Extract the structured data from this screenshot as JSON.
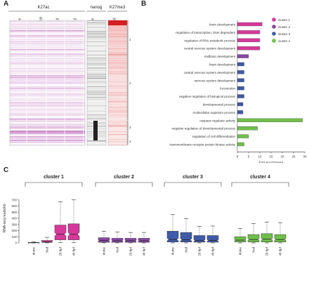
{
  "panels": {
    "a": "A",
    "b": "B",
    "c": "C"
  },
  "panel_a": {
    "group_k27ac": "K27ac",
    "group_nanog": "nanog",
    "group_k27me3": "K27me3",
    "col_labels": [
      "dome",
      "80%epi",
      "24hpf",
      "48hpf",
      "dome",
      "shield"
    ],
    "cluster_labels": [
      "1",
      "2",
      "3",
      "4"
    ]
  },
  "chart_data": [
    {
      "type": "bar",
      "orientation": "horizontal",
      "categories": [
        "brain development",
        "regulation of transcription, DNA dependent",
        "regulation of RNA metabolic process",
        "central nervous system development",
        "midbrain development",
        "brain development",
        "central nervous system development",
        "nervous system development",
        "locomotion",
        "negative regulation of biological process",
        "developmental process",
        "multicellular organism process",
        "caspase regulator activity",
        "negative regulation of developmental process",
        "regulation of cell differentiation",
        "transmembrane receptor protein kinase activity"
      ],
      "values": [
        11,
        10,
        10,
        10,
        5,
        3,
        3,
        3,
        3,
        3,
        2.5,
        2.5,
        29,
        9,
        5,
        3
      ],
      "cluster_of_bar": [
        1,
        1,
        1,
        1,
        2,
        3,
        3,
        3,
        3,
        3,
        3,
        3,
        4,
        4,
        4,
        4
      ],
      "legend": [
        "cluster 1",
        "cluster 2",
        "cluster 3",
        "cluster 4"
      ],
      "colors": {
        "cluster 1": "#d6389a",
        "cluster 2": "#8b46a6",
        "cluster 3": "#3f5aa8",
        "cluster 4": "#6fbf4a"
      },
      "xlabel": "fold enrichment",
      "xlim": [
        0,
        30
      ],
      "xticks": [
        0,
        5,
        10,
        15,
        20,
        25,
        30
      ],
      "legend_position": "top-right"
    },
    {
      "type": "box",
      "ylabel": "RNA-seq reads/kb",
      "ylim": [
        0,
        800
      ],
      "yticks": [
        0,
        100,
        200,
        300,
        400,
        500,
        600,
        700
      ],
      "groups": [
        {
          "name": "cluster 1",
          "color": "#d6389a",
          "categories": [
            "dome",
            "bud",
            "28 hpf",
            "48 hpf"
          ],
          "boxes": [
            {
              "min": 0,
              "q1": 1,
              "median": 3,
              "q3": 7,
              "max": 15
            },
            {
              "min": 0,
              "q1": 8,
              "median": 18,
              "q3": 40,
              "max": 90
            },
            {
              "min": 5,
              "q1": 50,
              "median": 140,
              "q3": 290,
              "max": 670
            },
            {
              "min": 5,
              "q1": 50,
              "median": 140,
              "q3": 310,
              "max": 700
            }
          ]
        },
        {
          "name": "cluster 2",
          "color": "#8b46a6",
          "categories": [
            "dome",
            "bud",
            "28 hpf",
            "48 hpf"
          ],
          "boxes": [
            {
              "min": 0,
              "q1": 10,
              "median": 40,
              "q3": 85,
              "max": 190
            },
            {
              "min": 0,
              "q1": 10,
              "median": 35,
              "q3": 75,
              "max": 175
            },
            {
              "min": 0,
              "q1": 10,
              "median": 35,
              "q3": 75,
              "max": 170
            },
            {
              "min": 0,
              "q1": 10,
              "median": 35,
              "q3": 75,
              "max": 170
            }
          ]
        },
        {
          "name": "cluster 3",
          "color": "#3f5aa8",
          "categories": [
            "dome",
            "bud",
            "28 hpf",
            "48 hpf"
          ],
          "boxes": [
            {
              "min": 0,
              "q1": 15,
              "median": 55,
              "q3": 190,
              "max": 460
            },
            {
              "min": 0,
              "q1": 15,
              "median": 50,
              "q3": 170,
              "max": 395
            },
            {
              "min": 0,
              "q1": 12,
              "median": 40,
              "q3": 120,
              "max": 270
            },
            {
              "min": 0,
              "q1": 12,
              "median": 40,
              "q3": 120,
              "max": 275
            }
          ]
        },
        {
          "name": "cluster 4",
          "color": "#6fbf4a",
          "categories": [
            "dome",
            "bud",
            "28 hpf",
            "48 hpf"
          ],
          "boxes": [
            {
              "min": 0,
              "q1": 15,
              "median": 45,
              "q3": 100,
              "max": 235
            },
            {
              "min": 0,
              "q1": 15,
              "median": 55,
              "q3": 135,
              "max": 315
            },
            {
              "min": 0,
              "q1": 15,
              "median": 60,
              "q3": 150,
              "max": 340
            },
            {
              "min": 0,
              "q1": 15,
              "median": 55,
              "q3": 135,
              "max": 330
            }
          ]
        }
      ]
    }
  ]
}
